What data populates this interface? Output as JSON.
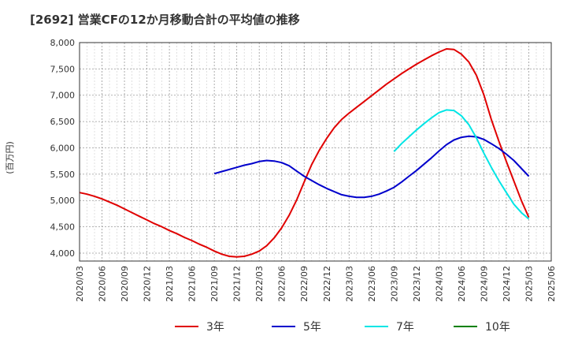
{
  "chart_data": {
    "type": "line",
    "title": "[2692]  営業CFの12か月移動合計の平均値の推移",
    "ylabel": "(百万円)",
    "ylim": [
      3850,
      8000
    ],
    "yticks": [
      4000,
      4500,
      5000,
      5500,
      6000,
      6500,
      7000,
      7500,
      8000
    ],
    "ytick_labels": [
      "4,000",
      "4,500",
      "5,000",
      "5,500",
      "6,000",
      "6,500",
      "7,000",
      "7,500",
      "8,000"
    ],
    "xtick_labels": [
      "2020/03",
      "2020/06",
      "2020/09",
      "2020/12",
      "2021/03",
      "2021/06",
      "2021/09",
      "2021/12",
      "2022/03",
      "2022/06",
      "2022/09",
      "2022/12",
      "2023/03",
      "2023/06",
      "2023/09",
      "2023/12",
      "2024/03",
      "2024/06",
      "2024/09",
      "2024/12",
      "2025/03",
      "2025/06"
    ],
    "grid": true,
    "legend_position": "bottom",
    "series": [
      {
        "name": "3年",
        "color": "#e00000",
        "x": [
          "2020/03",
          "2020/04",
          "2020/05",
          "2020/06",
          "2020/07",
          "2020/08",
          "2020/09",
          "2020/10",
          "2020/11",
          "2020/12",
          "2021/01",
          "2021/02",
          "2021/03",
          "2021/04",
          "2021/05",
          "2021/06",
          "2021/07",
          "2021/08",
          "2021/09",
          "2021/10",
          "2021/11",
          "2021/12",
          "2022/01",
          "2022/02",
          "2022/03",
          "2022/04",
          "2022/05",
          "2022/06",
          "2022/07",
          "2022/08",
          "2022/09",
          "2022/10",
          "2022/11",
          "2022/12",
          "2023/01",
          "2023/02",
          "2023/03",
          "2023/04",
          "2023/05",
          "2023/06",
          "2023/07",
          "2023/08",
          "2023/09",
          "2023/10",
          "2023/11",
          "2023/12",
          "2024/01",
          "2024/02",
          "2024/03",
          "2024/04",
          "2024/05",
          "2024/06",
          "2024/07",
          "2024/08",
          "2024/09",
          "2024/10",
          "2024/11",
          "2024/12",
          "2025/01",
          "2025/02",
          "2025/03"
        ],
        "values": [
          5150,
          5120,
          5080,
          5030,
          4970,
          4910,
          4840,
          4770,
          4700,
          4630,
          4560,
          4500,
          4430,
          4370,
          4300,
          4240,
          4170,
          4110,
          4040,
          3980,
          3940,
          3930,
          3940,
          3980,
          4040,
          4140,
          4290,
          4480,
          4720,
          5010,
          5350,
          5680,
          5950,
          6180,
          6380,
          6540,
          6660,
          6770,
          6880,
          6990,
          7100,
          7210,
          7310,
          7410,
          7500,
          7590,
          7670,
          7750,
          7820,
          7880,
          7870,
          7780,
          7630,
          7380,
          7010,
          6540,
          6130,
          5740,
          5370,
          5000,
          4680
        ]
      },
      {
        "name": "5年",
        "color": "#0000cc",
        "x": [
          "2021/09",
          "2021/10",
          "2021/11",
          "2021/12",
          "2022/01",
          "2022/02",
          "2022/03",
          "2022/04",
          "2022/05",
          "2022/06",
          "2022/07",
          "2022/08",
          "2022/09",
          "2022/10",
          "2022/11",
          "2022/12",
          "2023/01",
          "2023/02",
          "2023/03",
          "2023/04",
          "2023/05",
          "2023/06",
          "2023/07",
          "2023/08",
          "2023/09",
          "2023/10",
          "2023/11",
          "2023/12",
          "2024/01",
          "2024/02",
          "2024/03",
          "2024/04",
          "2024/05",
          "2024/06",
          "2024/07",
          "2024/08",
          "2024/09",
          "2024/10",
          "2024/11",
          "2024/12",
          "2025/01",
          "2025/02",
          "2025/03"
        ],
        "values": [
          5510,
          5550,
          5590,
          5630,
          5670,
          5700,
          5740,
          5760,
          5750,
          5720,
          5660,
          5560,
          5460,
          5380,
          5300,
          5230,
          5170,
          5110,
          5080,
          5060,
          5060,
          5080,
          5120,
          5180,
          5250,
          5350,
          5460,
          5570,
          5690,
          5810,
          5940,
          6060,
          6150,
          6200,
          6220,
          6210,
          6160,
          6080,
          5990,
          5880,
          5760,
          5610,
          5460
        ]
      },
      {
        "name": "7年",
        "color": "#00e5e5",
        "x": [
          "2023/09",
          "2023/10",
          "2023/11",
          "2023/12",
          "2024/01",
          "2024/02",
          "2024/03",
          "2024/04",
          "2024/05",
          "2024/06",
          "2024/07",
          "2024/08",
          "2024/09",
          "2024/10",
          "2024/11",
          "2024/12",
          "2025/01",
          "2025/02",
          "2025/03"
        ],
        "values": [
          5930,
          6080,
          6210,
          6340,
          6460,
          6570,
          6670,
          6720,
          6710,
          6610,
          6440,
          6190,
          5900,
          5630,
          5380,
          5150,
          4930,
          4770,
          4650
        ]
      },
      {
        "name": "10年",
        "color": "#008000",
        "x": [],
        "values": []
      }
    ]
  }
}
